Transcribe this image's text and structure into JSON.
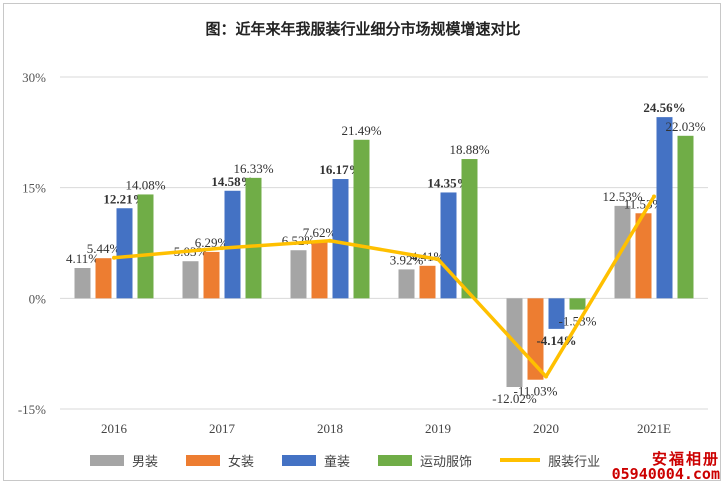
{
  "title": "图：近年来年我服装行业细分市场规模增速对比",
  "watermark": {
    "line1": "安福相册",
    "line2": "05940004.com"
  },
  "colors": {
    "男装": "#a5a5a5",
    "女装": "#ed7d31",
    "童装": "#4472c4",
    "运动服饰": "#70ad47",
    "服装行业": "#ffc000"
  },
  "chart_data": {
    "type": "bar",
    "categories": [
      "2016",
      "2017",
      "2018",
      "2019",
      "2020",
      "2021E"
    ],
    "series": [
      {
        "name": "男装",
        "values": [
          4.11,
          5.03,
          6.52,
          3.92,
          -12.02,
          12.53
        ],
        "labels": [
          "4.11%",
          "5.03%",
          "6.52%",
          "3.92%",
          "-12.02%",
          "12.53%"
        ]
      },
      {
        "name": "女装",
        "values": [
          5.44,
          6.29,
          7.62,
          4.41,
          -11.03,
          11.53
        ],
        "labels": [
          "5.44%",
          "6.29%",
          "7.62%",
          "4.41%",
          "-11.03%",
          "11.53%"
        ]
      },
      {
        "name": "童装",
        "values": [
          12.21,
          14.58,
          16.17,
          14.35,
          -4.14,
          24.56
        ],
        "labels": [
          "12.21%",
          "14.58%",
          "16.17%",
          "14.35%",
          "-4.14%",
          "24.56%"
        ]
      },
      {
        "name": "运动服饰",
        "values": [
          14.08,
          16.33,
          21.49,
          18.88,
          -1.53,
          22.03
        ],
        "labels": [
          "14.08%",
          "16.33%",
          "21.49%",
          "18.88%",
          "-1.53%",
          "22.03%"
        ]
      }
    ],
    "line_series": {
      "name": "服装行业",
      "type": "line",
      "values": [
        5.5,
        6.8,
        7.8,
        5.3,
        -10.6,
        13.8
      ]
    },
    "yticks": [
      "30%",
      "15%",
      "0%",
      "-15%"
    ],
    "ylim": [
      -15,
      30
    ],
    "grid": true,
    "legend_position": "bottom"
  }
}
